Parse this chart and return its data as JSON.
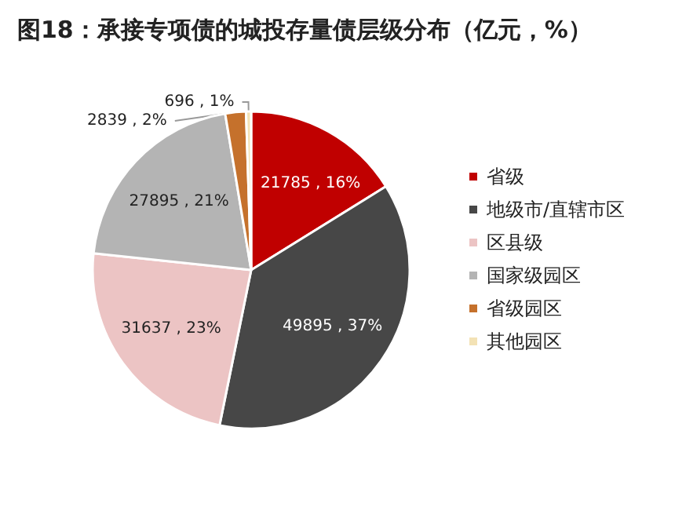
{
  "chart_data": {
    "type": "pie",
    "title": "图18：承接专项债的城投存量债层级分布（亿元，%）",
    "categories": [
      "省级",
      "地级市/直辖市区",
      "区县级",
      "国家级园区",
      "省级园区",
      "其他园区"
    ],
    "values": [
      21785,
      49895,
      31637,
      27895,
      2839,
      696
    ],
    "value_labels": [
      "21785 , 16%",
      "49895 , 37%",
      "31637 , 23%",
      "27895 , 21%",
      "2839 , 2%",
      "696 , 1%"
    ],
    "colors": [
      "#c00000",
      "#474747",
      "#ecc4c4",
      "#b4b4b4",
      "#c5712c",
      "#f3e2b5"
    ],
    "legend": "right"
  }
}
